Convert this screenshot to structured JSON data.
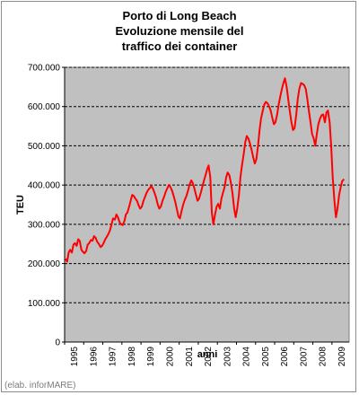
{
  "title_lines": [
    "Porto di Long Beach",
    "Evoluzione mensile del",
    "traffico dei container"
  ],
  "credit": "(elab. inforMARE)",
  "chart_data": {
    "type": "line",
    "title": "Porto di Long Beach Evoluzione mensile del traffico dei container",
    "xlabel": "anni",
    "ylabel": "TEU",
    "ylim": [
      0,
      700000
    ],
    "yticks": [
      0,
      100000,
      200000,
      300000,
      400000,
      500000,
      600000,
      700000
    ],
    "ytick_labels": [
      "0",
      "100.000",
      "200.000",
      "300.000",
      "400.000",
      "500.000",
      "600.000",
      "700.000"
    ],
    "xlim": [
      1995.0,
      2009.9
    ],
    "xtick_labels": [
      "1995",
      "1996",
      "1997",
      "1998",
      "1999",
      "2000",
      "2001",
      "2002",
      "2003",
      "2004",
      "2005",
      "2006",
      "2007",
      "2008",
      "2009"
    ],
    "grid": "horizontal dashed",
    "background_color": "#c0c0c0",
    "line_color": "#ff0000",
    "series": [
      {
        "x": [
          1995.04,
          1995.13,
          1995.21,
          1995.29,
          1995.38,
          1995.46,
          1995.54,
          1995.63,
          1995.71,
          1995.79,
          1995.88,
          1995.96,
          1996.04,
          1996.13,
          1996.21,
          1996.29,
          1996.38,
          1996.46,
          1996.54,
          1996.63,
          1996.71,
          1996.79,
          1996.88,
          1996.96,
          1997.04,
          1997.13,
          1997.21,
          1997.29,
          1997.38,
          1997.46,
          1997.54,
          1997.63,
          1997.71,
          1997.79,
          1997.88,
          1997.96,
          1998.04,
          1998.13,
          1998.21,
          1998.29,
          1998.38,
          1998.46,
          1998.54,
          1998.63,
          1998.71,
          1998.79,
          1998.88,
          1998.96,
          1999.04,
          1999.13,
          1999.21,
          1999.29,
          1999.38,
          1999.46,
          1999.54,
          1999.63,
          1999.71,
          1999.79,
          1999.88,
          1999.96,
          2000.04,
          2000.13,
          2000.21,
          2000.29,
          2000.38,
          2000.46,
          2000.54,
          2000.63,
          2000.71,
          2000.79,
          2000.88,
          2000.96,
          2001.04,
          2001.13,
          2001.21,
          2001.29,
          2001.38,
          2001.46,
          2001.54,
          2001.63,
          2001.71,
          2001.79,
          2001.88,
          2001.96,
          2002.04,
          2002.13,
          2002.21,
          2002.29,
          2002.38,
          2002.46,
          2002.54,
          2002.63,
          2002.71,
          2002.79,
          2002.88,
          2002.96,
          2003.04,
          2003.13,
          2003.21,
          2003.29,
          2003.38,
          2003.46,
          2003.54,
          2003.63,
          2003.71,
          2003.79,
          2003.88,
          2003.96,
          2004.04,
          2004.13,
          2004.21,
          2004.29,
          2004.38,
          2004.46,
          2004.54,
          2004.63,
          2004.71,
          2004.79,
          2004.88,
          2004.96,
          2005.04,
          2005.13,
          2005.21,
          2005.29,
          2005.38,
          2005.46,
          2005.54,
          2005.63,
          2005.71,
          2005.79,
          2005.88,
          2005.96,
          2006.04,
          2006.13,
          2006.21,
          2006.29,
          2006.38,
          2006.46,
          2006.54,
          2006.63,
          2006.71,
          2006.79,
          2006.88,
          2006.96,
          2007.04,
          2007.13,
          2007.21,
          2007.29,
          2007.38,
          2007.46,
          2007.54,
          2007.63,
          2007.71,
          2007.79,
          2007.88,
          2007.96,
          2008.04,
          2008.13,
          2008.21,
          2008.29,
          2008.38,
          2008.46,
          2008.54,
          2008.63,
          2008.71,
          2008.79,
          2008.88,
          2008.96,
          2009.04,
          2009.13,
          2009.21,
          2009.29,
          2009.38,
          2009.46,
          2009.54,
          2009.63
        ],
        "y": [
          212000,
          205000,
          228000,
          235000,
          228000,
          248000,
          252000,
          245000,
          262000,
          258000,
          235000,
          230000,
          226000,
          232000,
          248000,
          252000,
          260000,
          258000,
          270000,
          265000,
          255000,
          250000,
          242000,
          245000,
          252000,
          262000,
          268000,
          275000,
          285000,
          300000,
          315000,
          312000,
          325000,
          318000,
          305000,
          300000,
          298000,
          308000,
          325000,
          330000,
          345000,
          360000,
          375000,
          372000,
          365000,
          360000,
          348000,
          340000,
          345000,
          360000,
          370000,
          380000,
          388000,
          392000,
          398000,
          390000,
          380000,
          368000,
          350000,
          340000,
          345000,
          360000,
          370000,
          382000,
          392000,
          400000,
          395000,
          385000,
          372000,
          358000,
          338000,
          320000,
          315000,
          335000,
          350000,
          362000,
          372000,
          385000,
          400000,
          412000,
          405000,
          392000,
          375000,
          360000,
          365000,
          380000,
          395000,
          410000,
          425000,
          440000,
          450000,
          420000,
          330000,
          300000,
          325000,
          345000,
          352000,
          340000,
          365000,
          380000,
          395000,
          420000,
          432000,
          425000,
          405000,
          380000,
          340000,
          318000,
          340000,
          375000,
          420000,
          450000,
          480000,
          510000,
          525000,
          518000,
          505000,
          490000,
          470000,
          455000,
          465000,
          500000,
          540000,
          570000,
          590000,
          605000,
          612000,
          608000,
          600000,
          590000,
          570000,
          555000,
          560000,
          580000,
          605000,
          625000,
          645000,
          660000,
          672000,
          650000,
          620000,
          590000,
          560000,
          540000,
          545000,
          580000,
          620000,
          645000,
          660000,
          658000,
          655000,
          645000,
          620000,
          590000,
          560000,
          530000,
          520000,
          500000,
          530000,
          555000,
          570000,
          578000,
          580000,
          560000,
          585000,
          590000,
          560000,
          500000,
          420000,
          360000,
          318000,
          340000,
          375000,
          395000,
          410000,
          415000
        ]
      }
    ]
  }
}
